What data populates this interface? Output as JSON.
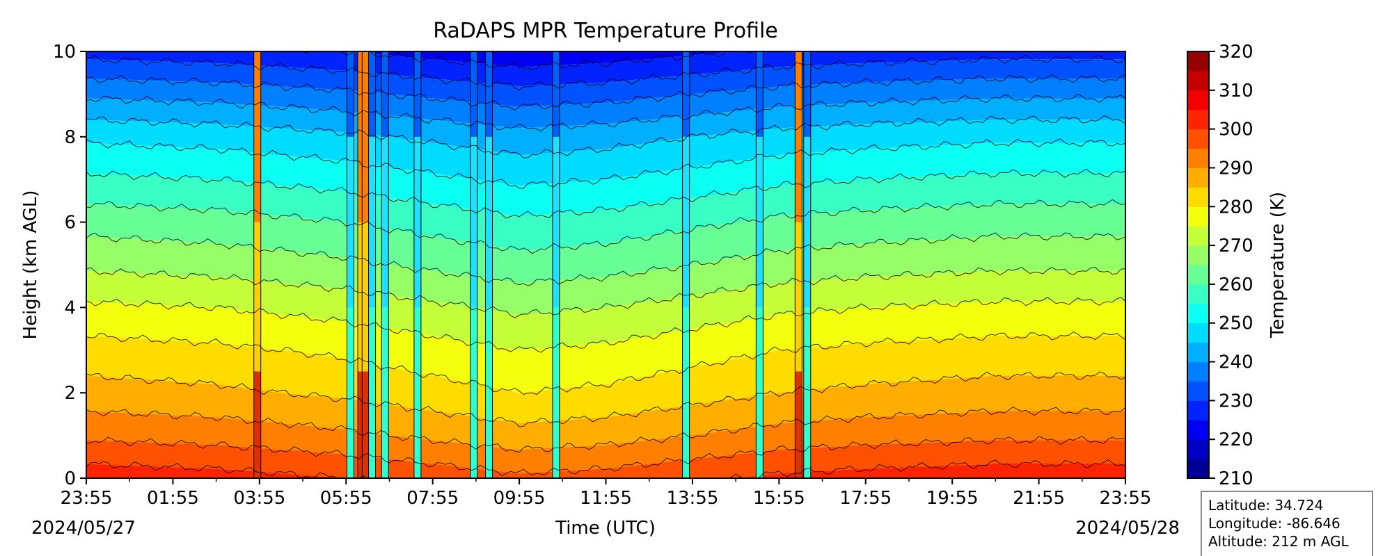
{
  "chart_data": {
    "type": "heatmap",
    "title": "RaDAPS MPR Temperature Profile",
    "xlabel": "Time (UTC)",
    "ylabel": "Height (km AGL)",
    "colorbar_label": "Temperature (K)",
    "x_tick_labels": [
      "23:55",
      "01:55",
      "03:55",
      "05:55",
      "07:55",
      "09:55",
      "11:55",
      "13:55",
      "15:55",
      "17:55",
      "19:55",
      "21:55",
      "23:55"
    ],
    "x_tick_hours": [
      0,
      2,
      4,
      6,
      8,
      10,
      12,
      14,
      16,
      18,
      20,
      22,
      24
    ],
    "x_minor_tick_hours": [
      1,
      3,
      5,
      7,
      9,
      11,
      13,
      15,
      17,
      19,
      21,
      23
    ],
    "xlim_hours": [
      0,
      24
    ],
    "start_date_label": "2024/05/27",
    "end_date_label": "2024/05/28",
    "y_ticks": [
      0,
      2,
      4,
      6,
      8,
      10
    ],
    "ylim": [
      0,
      10
    ],
    "colorbar_ticks": [
      210,
      220,
      230,
      240,
      250,
      260,
      270,
      280,
      290,
      300,
      310,
      320
    ],
    "colorbar_levels": [
      210,
      215,
      220,
      225,
      230,
      235,
      240,
      245,
      250,
      255,
      260,
      265,
      270,
      275,
      280,
      285,
      290,
      295,
      300,
      305,
      310,
      315,
      320
    ],
    "colormap": "jet",
    "colormap_stops": [
      "#00007f",
      "#0000ff",
      "#007fff",
      "#00ffff",
      "#7fff7f",
      "#ffff00",
      "#ff7f00",
      "#ff0000",
      "#7f0000"
    ],
    "vertical_profile": {
      "heights_km": [
        0,
        1,
        2,
        3,
        4,
        5,
        6,
        7,
        8,
        9,
        10
      ],
      "temperature_K": [
        300,
        291,
        284,
        279,
        273,
        266,
        260,
        253,
        246,
        236,
        225
      ]
    },
    "time_trend": {
      "hours": [
        0,
        3,
        6,
        8,
        10,
        12,
        14,
        16,
        18,
        21,
        24
      ],
      "offset_K": [
        3,
        2,
        0,
        -2,
        -4,
        -3,
        -1,
        1,
        2,
        3,
        3
      ]
    },
    "disturbance_columns": [
      {
        "hour": 3.95,
        "anomaly": "warm"
      },
      {
        "hour": 6.1,
        "anomaly": "cold"
      },
      {
        "hour": 6.35,
        "anomaly": "warm"
      },
      {
        "hour": 6.45,
        "anomaly": "warm"
      },
      {
        "hour": 6.6,
        "anomaly": "cold"
      },
      {
        "hour": 6.9,
        "anomaly": "cold"
      },
      {
        "hour": 7.65,
        "anomaly": "cold"
      },
      {
        "hour": 8.95,
        "anomaly": "cold"
      },
      {
        "hour": 9.3,
        "anomaly": "cold"
      },
      {
        "hour": 10.85,
        "anomaly": "cold"
      },
      {
        "hour": 13.85,
        "anomaly": "cold"
      },
      {
        "hour": 15.55,
        "anomaly": "cold"
      },
      {
        "hour": 16.45,
        "anomaly": "warm"
      },
      {
        "hour": 16.65,
        "anomaly": "cold"
      }
    ],
    "station_info": {
      "latitude": "Latitude: 34.724",
      "longitude": "Longitude: -86.646",
      "altitude": "Altitude: 212 m AGL"
    }
  }
}
